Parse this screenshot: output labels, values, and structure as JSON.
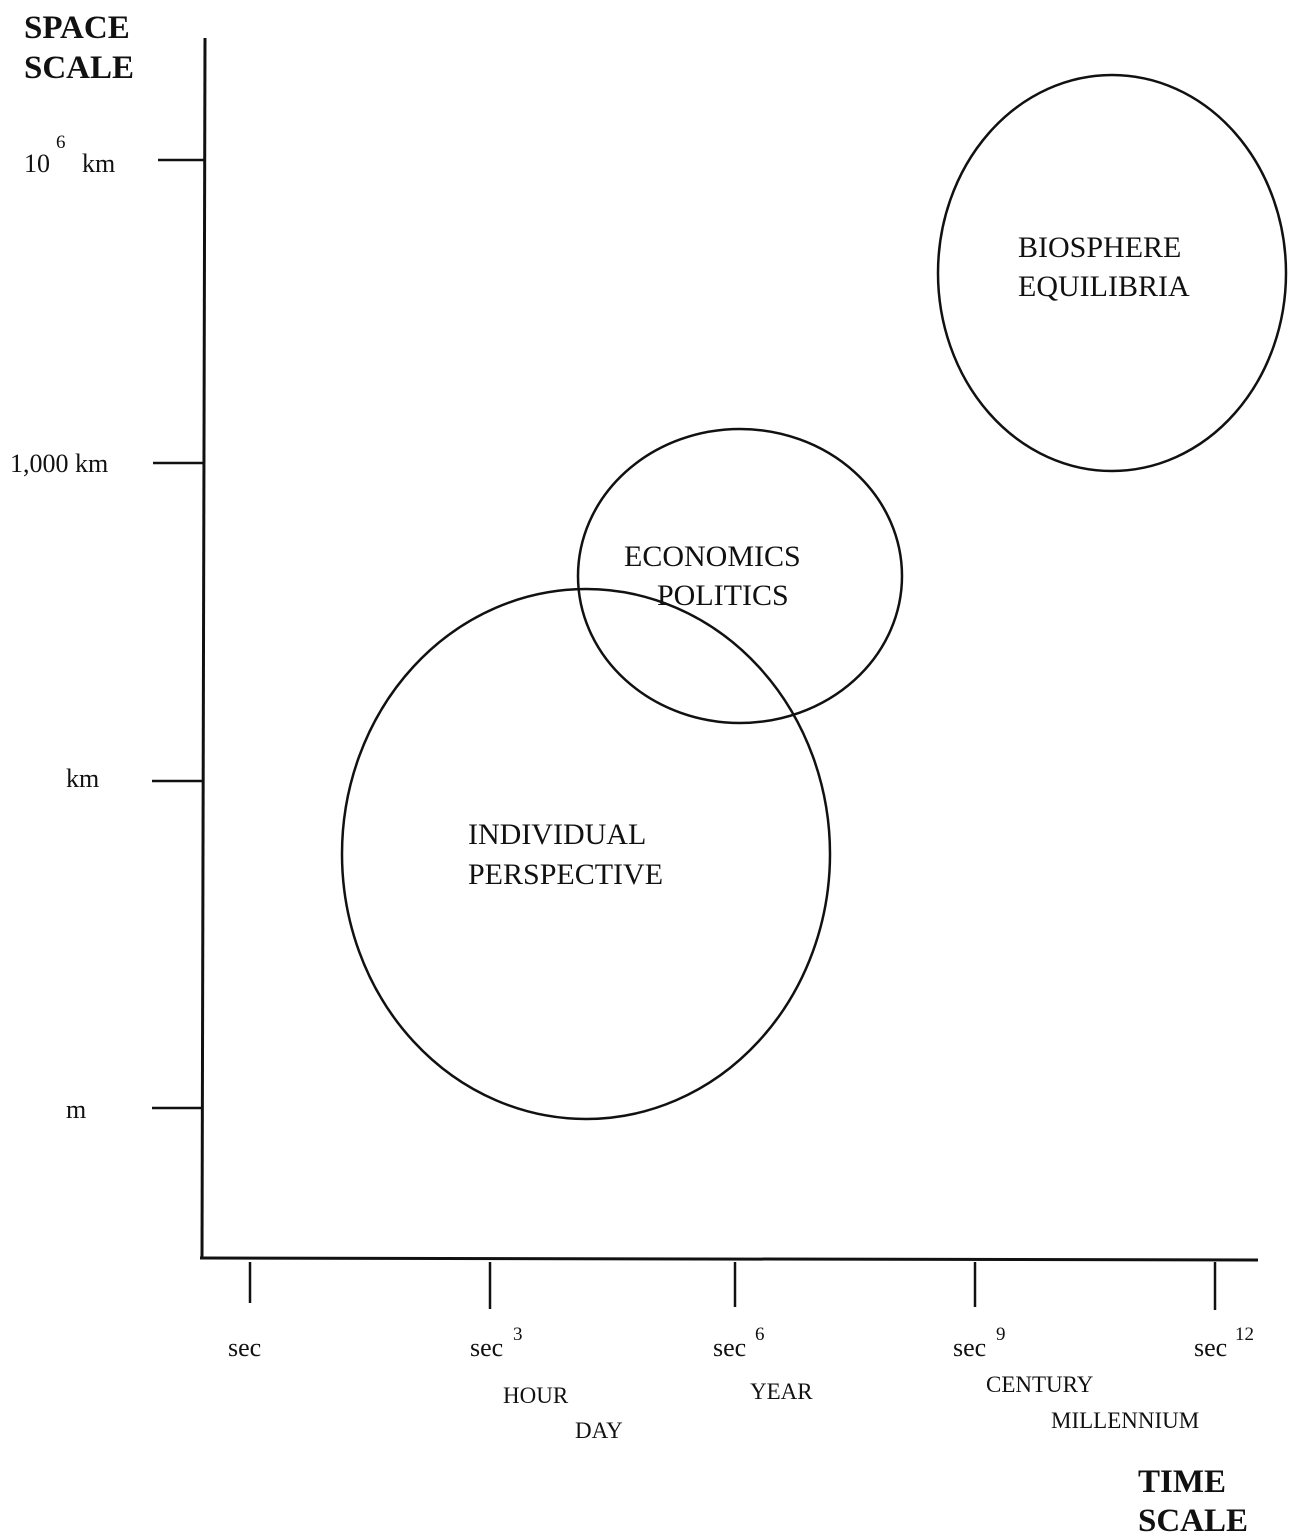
{
  "axes": {
    "y_title": [
      "SPACE",
      "SCALE"
    ],
    "x_title": [
      "TIME",
      "SCALE"
    ],
    "y_ticks": [
      {
        "base": "10",
        "sup": "6",
        "unit": "km"
      },
      {
        "label": "1,000 km"
      },
      {
        "label": "km"
      },
      {
        "label": "m"
      }
    ],
    "x_ticks": [
      {
        "base": "sec",
        "sup": ""
      },
      {
        "base": "sec",
        "sup": "3"
      },
      {
        "base": "sec",
        "sup": "6"
      },
      {
        "base": "sec",
        "sup": "9"
      },
      {
        "base": "sec",
        "sup": "12"
      }
    ],
    "time_words": [
      "HOUR",
      "DAY",
      "YEAR",
      "CENTURY",
      "MILLENNIUM"
    ]
  },
  "regions": [
    {
      "id": "biosphere",
      "lines": [
        "BIOSPHERE",
        "EQUILIBRIA"
      ]
    },
    {
      "id": "economics",
      "lines": [
        "ECONOMICS",
        "POLITICS"
      ]
    },
    {
      "id": "individual",
      "lines": [
        "INDIVIDUAL",
        "PERSPECTIVE"
      ]
    }
  ]
}
